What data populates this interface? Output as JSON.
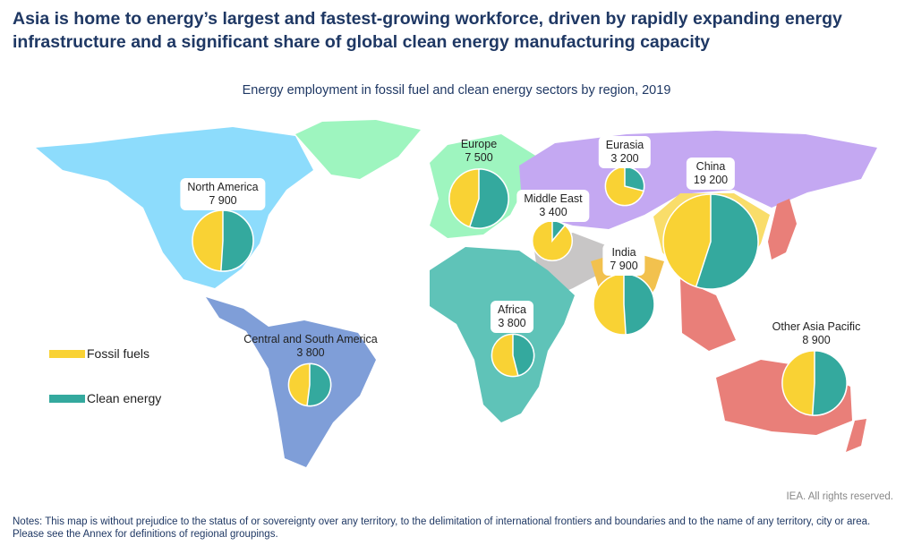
{
  "title": "Asia is home to energy’s largest and fastest-growing workforce, driven by rapidly expanding energy infrastructure and a significant share of global clean energy manufacturing capacity",
  "subtitle": "Energy employment in fossil fuel and clean energy sectors by region, 2019",
  "legend": [
    {
      "label": "Fossil fuels",
      "color": "#f9d234"
    },
    {
      "label": "Clean energy",
      "color": "#34a99e"
    }
  ],
  "region_colors": {
    "north_america": "#8ddcfc",
    "europe": "#9ef5bf",
    "eurasia": "#c4a8f2",
    "africa": "#5fc3b8",
    "central_south_america": "#7f9ed8",
    "middle_east": "#c8c6c6",
    "china": "#f9dd6a",
    "india": "#f2c14e",
    "other_asia_pacific": "#e97f79"
  },
  "chart_data": {
    "type": "pie",
    "unit": "thousand jobs",
    "regions": [
      {
        "name": "North America",
        "total": "7 900",
        "value": 7900,
        "clean_share": 0.51
      },
      {
        "name": "Central and South America",
        "total": "3 800",
        "value": 3800,
        "clean_share": 0.52
      },
      {
        "name": "Europe",
        "total": "7 500",
        "value": 7500,
        "clean_share": 0.55
      },
      {
        "name": "Eurasia",
        "total": "3 200",
        "value": 3200,
        "clean_share": 0.29
      },
      {
        "name": "Middle East",
        "total": "3 400",
        "value": 3400,
        "clean_share": 0.11
      },
      {
        "name": "China",
        "total": "19 200",
        "value": 19200,
        "clean_share": 0.55
      },
      {
        "name": "India",
        "total": "7 900",
        "value": 7900,
        "clean_share": 0.49
      },
      {
        "name": "Africa",
        "total": "3 800",
        "value": 3800,
        "clean_share": 0.46
      },
      {
        "name": "Other Asia Pacific",
        "total": "8 900",
        "value": 8900,
        "clean_share": 0.51
      }
    ]
  },
  "rights": "IEA. All rights reserved.",
  "notes": "Notes: This map is without prejudice to the status of or sovereignty over any territory, to the delimitation of international frontiers and boundaries and to the name of any territory, city or area. Please see the Annex for definitions of regional groupings."
}
